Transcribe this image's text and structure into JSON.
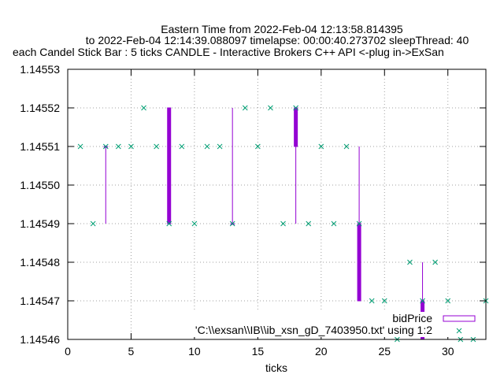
{
  "chart_data": {
    "type": "candlestick",
    "title_lines": [
      "Eastern Time from 2022-Feb-04 12:13:58.814395",
      "to 2022-Feb-04 12:14:39.088097 timelapse: 00:00:40.273702  sleepThread: 40",
      "each Candel Stick Bar : 5 ticks CANDLE - Interactive Brokers C++ API <-plug in->ExSan"
    ],
    "xlabel": "ticks",
    "ylabel": "",
    "xlim": [
      0,
      33
    ],
    "ylim": [
      1.14546,
      1.14553
    ],
    "x_ticks": [
      0,
      5,
      10,
      15,
      20,
      25,
      30
    ],
    "y_ticks": [
      1.14546,
      1.14547,
      1.14548,
      1.14549,
      1.1455,
      1.14551,
      1.14552,
      1.14553
    ],
    "y_tick_labels": [
      "1.14546",
      "1.14547",
      "1.14548",
      "1.14549",
      "1.14550",
      "1.14551",
      "1.14552",
      "1.14553"
    ],
    "grid": true,
    "legend_position": "bottom-right",
    "series": [
      {
        "name": "bidPrice",
        "kind": "candles",
        "color": "#9400d3",
        "candles": [
          {
            "x": 3,
            "open": 1.14551,
            "close": 1.14551,
            "low": 1.14549,
            "high": 1.14551
          },
          {
            "x": 8,
            "open": 1.14552,
            "close": 1.14549,
            "low": 1.14549,
            "high": 1.14552
          },
          {
            "x": 13,
            "open": 1.14549,
            "close": 1.14549,
            "low": 1.14549,
            "high": 1.14552
          },
          {
            "x": 18,
            "open": 1.14552,
            "close": 1.14551,
            "low": 1.14549,
            "high": 1.14552
          },
          {
            "x": 23,
            "open": 1.14549,
            "close": 1.14547,
            "low": 1.14547,
            "high": 1.14551
          },
          {
            "x": 28,
            "open": 1.14547,
            "close": 1.14546,
            "low": 1.14546,
            "high": 1.14548
          }
        ]
      },
      {
        "name": "'C:\\\\exsan\\\\IB\\\\ib_xsn_gD_7403950.txt' using 1:2",
        "kind": "points",
        "color": "#009e73",
        "x": [
          1,
          2,
          3,
          4,
          5,
          6,
          7,
          8,
          9,
          10,
          11,
          12,
          13,
          14,
          15,
          16,
          17,
          18,
          19,
          20,
          21,
          22,
          23,
          24,
          25,
          26,
          27,
          28,
          29,
          30,
          31,
          32,
          33
        ],
        "y": [
          1.14551,
          1.14549,
          1.14551,
          1.14551,
          1.14551,
          1.14552,
          1.14551,
          1.14549,
          1.14551,
          1.14549,
          1.14551,
          1.14551,
          1.14549,
          1.14552,
          1.14551,
          1.14552,
          1.14549,
          1.14552,
          1.14549,
          1.14551,
          1.14549,
          1.14551,
          1.14549,
          1.14547,
          1.14547,
          1.14546,
          1.14548,
          1.14547,
          1.14548,
          1.14547,
          1.14546,
          1.14546,
          1.14547
        ]
      }
    ]
  }
}
